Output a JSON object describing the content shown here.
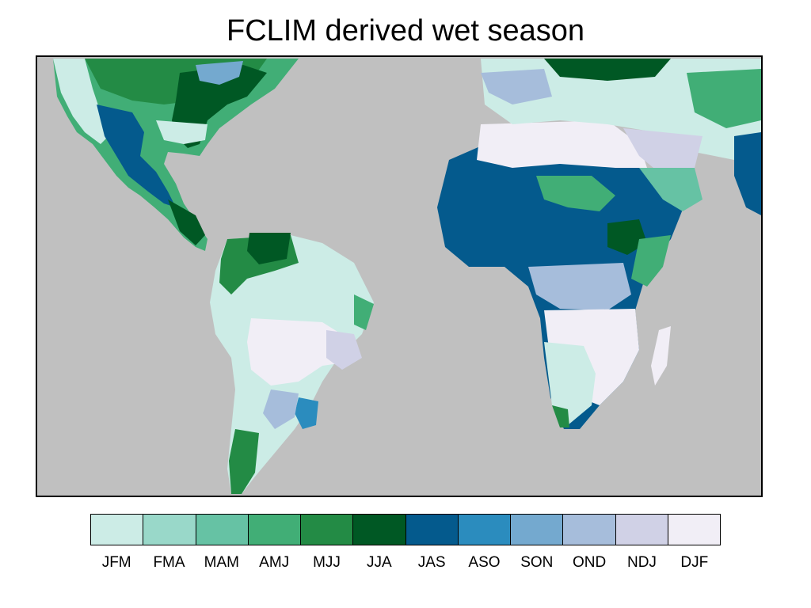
{
  "title": "FCLIM derived wet season",
  "legend": {
    "items": [
      {
        "label": "JFM",
        "color": "#ccece6"
      },
      {
        "label": "FMA",
        "color": "#99d8c9"
      },
      {
        "label": "MAM",
        "color": "#66c2a4"
      },
      {
        "label": "AMJ",
        "color": "#41ae76"
      },
      {
        "label": "MJJ",
        "color": "#238b45"
      },
      {
        "label": "JJA",
        "color": "#005824"
      },
      {
        "label": "JAS",
        "color": "#045a8d"
      },
      {
        "label": "ASO",
        "color": "#2b8cbe"
      },
      {
        "label": "SON",
        "color": "#74a9cf"
      },
      {
        "label": "OND",
        "color": "#a6bddb"
      },
      {
        "label": "NDJ",
        "color": "#d0d1e6"
      },
      {
        "label": "DJF",
        "color": "#f1eef6"
      }
    ]
  },
  "map": {
    "ocean_color": "#c0c0c0",
    "border_color": "#000000"
  }
}
